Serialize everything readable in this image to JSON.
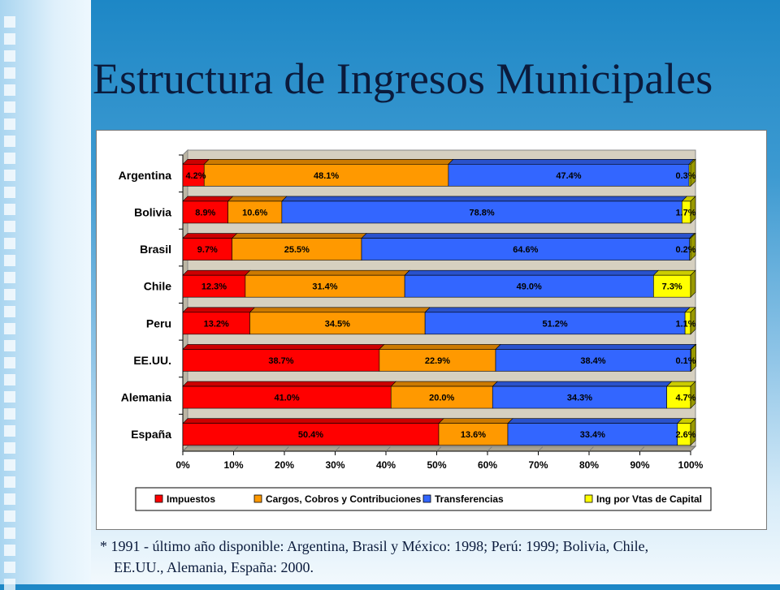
{
  "title": "Estructura de Ingresos Municipales",
  "footnote": {
    "line1": "* 1991 - último año disponible: Argentina, Brasil y México: 1998; Perú: 1999; Bolivia, Chile,",
    "line2": "EE.UU., Alemania, España: 2000."
  },
  "colors": {
    "Impuestos": "#ff0000",
    "Cargos, Cobros y Contribuciones": "#ff9900",
    "Transferencias": "#3366ff",
    "Ing por Vtas de Capital": "#ffff00",
    "plot_background": "#d6d0c0"
  },
  "chart_data": {
    "type": "bar",
    "orientation": "horizontal",
    "stacked": "100%",
    "categories": [
      "Argentina",
      "Bolivia",
      "Brasil",
      "Chile",
      "Peru",
      "EE.UU.",
      "Alemania",
      "España"
    ],
    "series": [
      {
        "name": "Impuestos",
        "values": [
          4.2,
          8.9,
          9.7,
          12.3,
          13.2,
          38.7,
          41.0,
          50.4
        ],
        "labels": [
          "4.2%",
          "8.9%",
          "9.7%",
          "12.3%",
          "13.2%",
          "38.7%",
          "41.0%",
          "50.4%"
        ]
      },
      {
        "name": "Cargos, Cobros y Contribuciones",
        "values": [
          48.1,
          10.6,
          25.5,
          31.4,
          34.5,
          22.9,
          20.0,
          13.6
        ],
        "labels": [
          "48.1%",
          "10.6%",
          "25.5%",
          "31.4%",
          "34.5%",
          "22.9%",
          "20.0%",
          "13.6%"
        ]
      },
      {
        "name": "Transferencias",
        "values": [
          47.4,
          78.8,
          64.6,
          49.0,
          51.2,
          38.4,
          34.3,
          33.4
        ],
        "labels": [
          "47.4%",
          "78.8%",
          "64.6%",
          "49.0%",
          "51.2%",
          "38.4%",
          "34.3%",
          "33.4%"
        ]
      },
      {
        "name": "Ing por Vtas de Capital",
        "values": [
          0.3,
          1.7,
          0.2,
          7.3,
          1.1,
          0.1,
          4.7,
          2.6
        ],
        "labels": [
          "0.3%",
          "1.7%",
          "0.2%",
          "7.3%",
          "1.1%",
          "0.1%",
          "4.7%",
          "2.6%"
        ]
      }
    ],
    "x_ticks": [
      "0%",
      "10%",
      "20%",
      "30%",
      "40%",
      "50%",
      "60%",
      "70%",
      "80%",
      "90%",
      "100%"
    ],
    "xlim": [
      0,
      100
    ],
    "legend_position": "bottom",
    "grid": false
  }
}
